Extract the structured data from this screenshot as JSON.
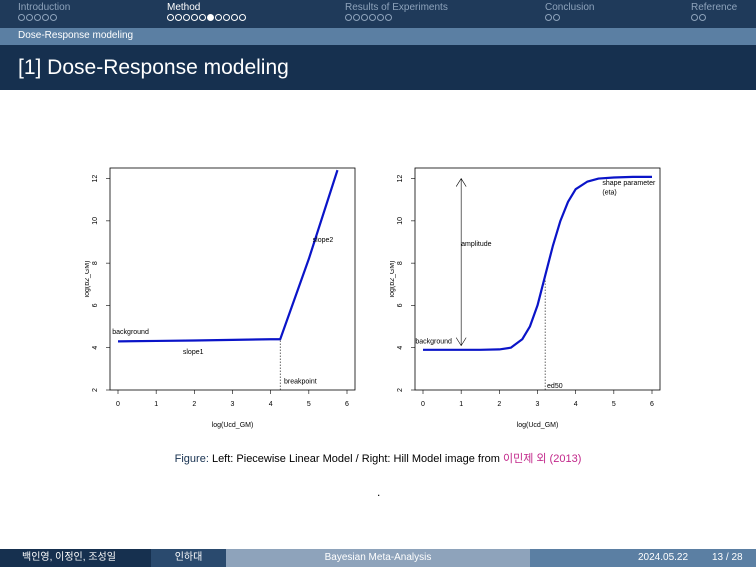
{
  "nav": {
    "sections": [
      {
        "label": "Introduction",
        "dots": 5,
        "active": false
      },
      {
        "label": "Method",
        "dots": 10,
        "active": true,
        "current_dot": 5
      },
      {
        "label": "Results of Experiments",
        "dots": 6,
        "active": false
      },
      {
        "label": "Conclusion",
        "dots": 2,
        "active": false
      },
      {
        "label": "Reference",
        "dots": 2,
        "active": false
      }
    ]
  },
  "subsection": "Dose-Response modeling",
  "frame_title": "[1] Dose-Response modeling",
  "chart_data": [
    {
      "type": "line",
      "xlabel": "log(Ucd_GM)",
      "ylabel": "log(b2_GM)",
      "xlim": [
        0,
        6
      ],
      "ylim": [
        2,
        12.5
      ],
      "xticks": [
        0,
        1,
        2,
        3,
        4,
        5,
        6
      ],
      "yticks": [
        2,
        4,
        6,
        8,
        10,
        12
      ],
      "series": [
        {
          "x": [
            0,
            1,
            2,
            3,
            4,
            4.25,
            5,
            5.75
          ],
          "y": [
            4.3,
            4.32,
            4.34,
            4.37,
            4.4,
            4.4,
            8.2,
            12.4
          ]
        }
      ],
      "annotations": [
        {
          "text": "background",
          "x": -0.15,
          "y": 4.65
        },
        {
          "text": "slope1",
          "x": 1.7,
          "y": 3.7
        },
        {
          "text": "slope2",
          "x": 5.1,
          "y": 9.0
        },
        {
          "text": "breakpoint",
          "x": 4.35,
          "y": 2.3
        }
      ],
      "vline": {
        "x": 4.25,
        "y_from": 2,
        "y_to": 4.4
      }
    },
    {
      "type": "line",
      "xlabel": "log(Ucd_GM)",
      "ylabel": "log(b2_GM)",
      "xlim": [
        0,
        6
      ],
      "ylim": [
        2,
        12.5
      ],
      "xticks": [
        0,
        1,
        2,
        3,
        4,
        5,
        6
      ],
      "yticks": [
        2,
        4,
        6,
        8,
        10,
        12
      ],
      "series": [
        {
          "x": [
            0,
            0.5,
            1,
            1.5,
            2,
            2.3,
            2.6,
            2.8,
            3,
            3.2,
            3.4,
            3.6,
            3.8,
            4,
            4.3,
            4.6,
            5,
            5.5,
            6
          ],
          "y": [
            3.9,
            3.9,
            3.9,
            3.9,
            3.92,
            4.0,
            4.4,
            5.0,
            6.0,
            7.4,
            8.8,
            10.0,
            10.9,
            11.5,
            11.85,
            12.0,
            12.05,
            12.08,
            12.08
          ]
        }
      ],
      "annotations": [
        {
          "text": "amplitude",
          "x": 1.0,
          "y": 8.8
        },
        {
          "text": "shape parameter",
          "x": 4.7,
          "y": 11.7
        },
        {
          "text": "(eta)",
          "x": 4.7,
          "y": 11.25
        },
        {
          "text": "background",
          "x": -0.2,
          "y": 4.2
        },
        {
          "text": "ed50",
          "x": 3.25,
          "y": 2.1
        }
      ],
      "arrow": {
        "x": 1.0,
        "y_from": 4.1,
        "y_to": 12.0
      },
      "vline": {
        "x": 3.2,
        "y_from": 2,
        "y_to": 7.4
      }
    }
  ],
  "caption": {
    "label": "Figure:",
    "text": " Left: Piecewise Linear Model / Right: Hill Model image from ",
    "cite": "이민제 외 (2013)"
  },
  "footer": {
    "authors": "백인영, 이정인, 조성일",
    "institute": "인하대",
    "title": "Bayesian Meta-Analysis",
    "date": "2024.05.22",
    "page": "13 / 28"
  }
}
